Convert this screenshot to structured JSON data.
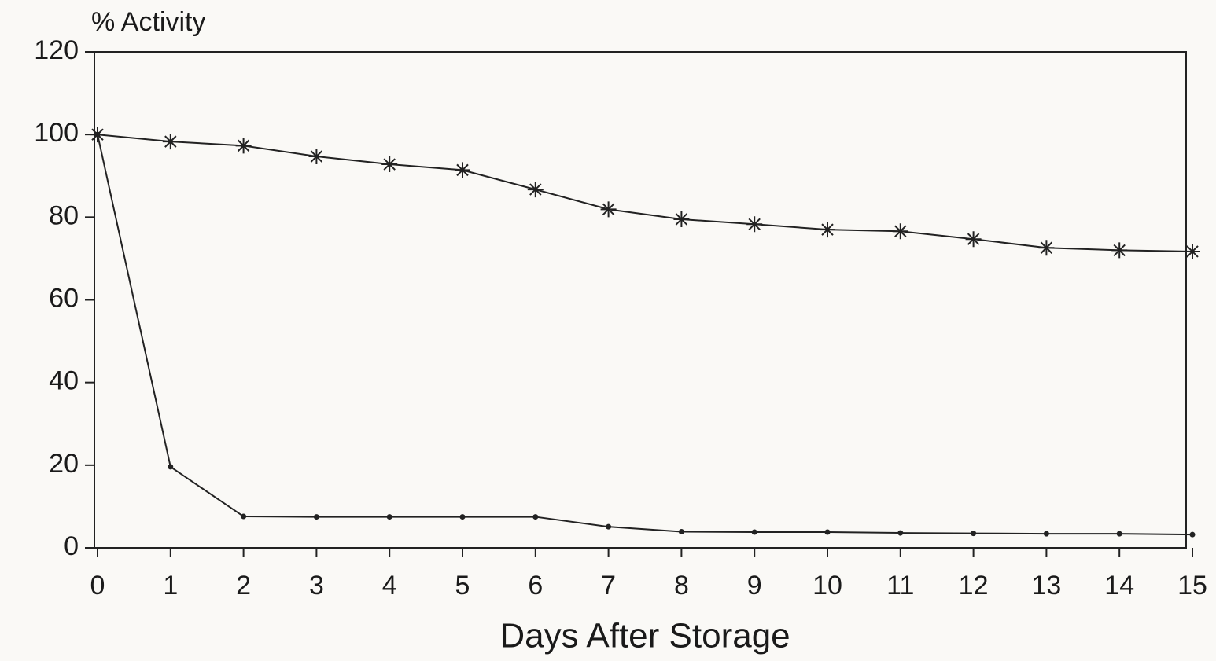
{
  "chart_data": {
    "type": "line",
    "y_label": "% Activity",
    "x_label": "Days After Storage",
    "x": [
      0,
      1,
      2,
      3,
      4,
      5,
      6,
      7,
      8,
      9,
      10,
      11,
      12,
      13,
      14,
      15
    ],
    "series": [
      {
        "color": "#222222",
        "marker": "star",
        "values": [
          100,
          98.3,
          97.3,
          94.7,
          92.8,
          91.4,
          86.7,
          81.9,
          79.5,
          78.3,
          77,
          76.6,
          74.7,
          72.6,
          72,
          71.7
        ]
      },
      {
        "color": "#222222",
        "marker": "dot",
        "values": [
          100,
          19.6,
          7.6,
          7.5,
          7.5,
          7.5,
          7.5,
          5.1,
          3.9,
          3.8,
          3.8,
          3.6,
          3.5,
          3.4,
          3.4,
          3.2
        ]
      }
    ],
    "xlim": [
      0,
      15
    ],
    "ylim": [
      0,
      120
    ],
    "xticks": [
      0,
      1,
      2,
      3,
      4,
      5,
      6,
      7,
      8,
      9,
      10,
      11,
      12,
      13,
      14,
      15
    ],
    "yticks": [
      0,
      20,
      40,
      60,
      80,
      100,
      120
    ],
    "grid": false
  }
}
